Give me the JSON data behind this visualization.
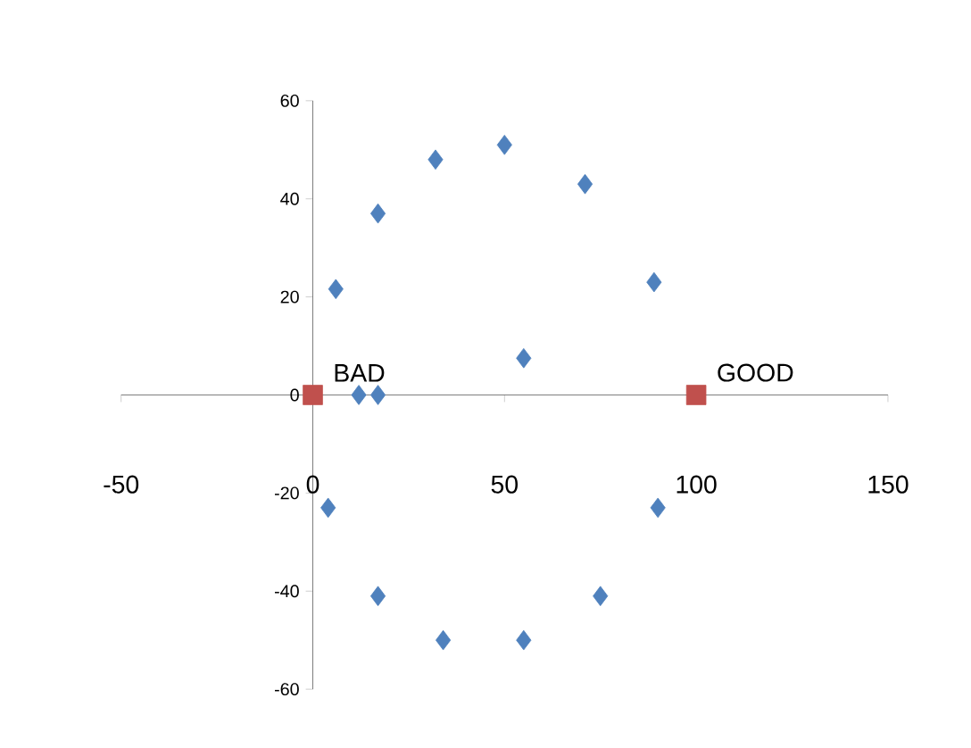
{
  "chart_data": {
    "type": "scatter",
    "series": [
      {
        "color": "#4f81bd",
        "marker": "diamond",
        "x": [
          6,
          17,
          32,
          50,
          71,
          89,
          55,
          12,
          17,
          4,
          90,
          17,
          75,
          34,
          55
        ],
        "values": [
          21.6,
          37,
          48,
          51,
          43,
          23,
          7.5,
          0,
          0,
          -23,
          -23,
          -41,
          -41,
          -50,
          -50
        ]
      },
      {
        "color": "#c0504d",
        "marker": "square",
        "x": [
          0,
          100
        ],
        "values": [
          0,
          0
        ]
      }
    ],
    "xlim": [
      -50,
      150
    ],
    "ylim": [
      -60,
      60
    ],
    "xticks": [
      -50,
      0,
      50,
      100,
      150
    ],
    "yticks": [
      -60,
      -40,
      -20,
      0,
      20,
      40,
      60
    ],
    "annotations": [
      {
        "text": "BAD",
        "x": 0,
        "y": 0
      },
      {
        "text": "GOOD",
        "x": 100,
        "y": 0
      }
    ]
  }
}
